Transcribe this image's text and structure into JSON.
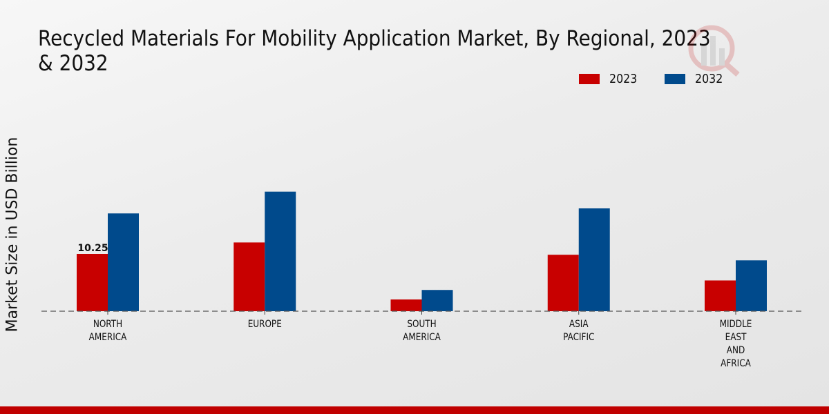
{
  "chart_data": {
    "type": "bar",
    "title": "Recycled Materials For Mobility Application Market, By Regional, 2023 & 2032",
    "xlabel": "",
    "ylabel": "Market Size in USD Billion",
    "categories": [
      [
        "NORTH",
        "AMERICA"
      ],
      [
        "EUROPE"
      ],
      [
        "SOUTH",
        "AMERICA"
      ],
      [
        "ASIA",
        "PACIFIC"
      ],
      [
        "MIDDLE",
        "EAST",
        "AND",
        "AFRICA"
      ]
    ],
    "series": [
      {
        "name": "2023",
        "color": "#c80000",
        "values": [
          10.25,
          12.3,
          2.1,
          10.1,
          5.5
        ]
      },
      {
        "name": "2032",
        "color": "#004a8c",
        "values": [
          17.5,
          21.4,
          3.8,
          18.4,
          9.1
        ]
      }
    ],
    "data_labels": [
      {
        "series": 0,
        "category": 0,
        "text": "10.25"
      }
    ],
    "ylim": [
      0,
      28
    ],
    "grid": false,
    "legend_position": "top-right",
    "baseline_style": "dashed"
  },
  "colors": {
    "accent_footer": "#c00000",
    "background": "#ebebeb"
  }
}
